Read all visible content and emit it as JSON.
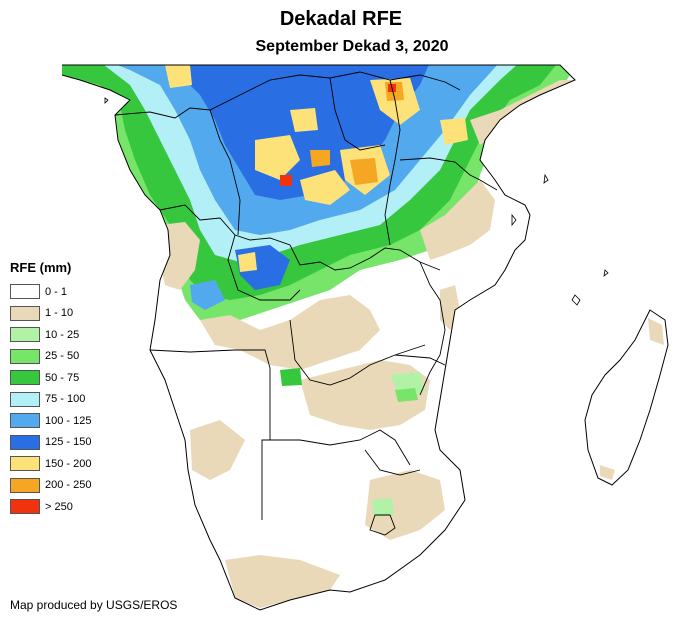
{
  "header": {
    "title": "Dekadal RFE",
    "subtitle": "September Dekad 3, 2020"
  },
  "legend": {
    "title": "RFE (mm)",
    "items": [
      {
        "label": "0 - 1",
        "color": "#ffffff"
      },
      {
        "label": "1 - 10",
        "color": "#ead9b8"
      },
      {
        "label": "10 - 25",
        "color": "#b2f2a6"
      },
      {
        "label": "25 - 50",
        "color": "#77e56a"
      },
      {
        "label": "50 - 75",
        "color": "#37c73e"
      },
      {
        "label": "75 - 100",
        "color": "#b3eff6"
      },
      {
        "label": "100 - 125",
        "color": "#52a9ee"
      },
      {
        "label": "125 - 150",
        "color": "#2a6ee3"
      },
      {
        "label": "150 - 200",
        "color": "#fde27a"
      },
      {
        "label": "200 - 250",
        "color": "#f5a623"
      },
      {
        "label": "> 250",
        "color": "#f0320e"
      }
    ]
  },
  "footer": {
    "credit": "Map produced by USGS/EROS"
  }
}
